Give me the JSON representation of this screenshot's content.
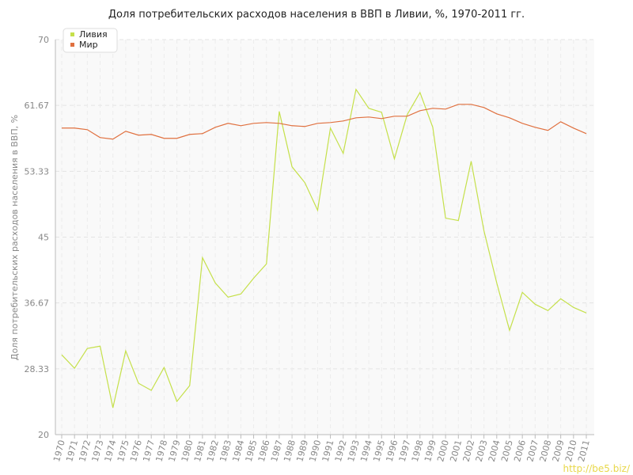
{
  "chart_data": {
    "type": "line",
    "title": "Доля потребительских расходов населения в ВВП в Ливии, %, 1970-2011 гг.",
    "y_label": "Доля потребительских расходов населения в ВВП, %",
    "watermark": "http://be5.biz/",
    "categories": [
      "1970",
      "1971",
      "1972",
      "1973",
      "1974",
      "1975",
      "1976",
      "1977",
      "1978",
      "1979",
      "1980",
      "1981",
      "1982",
      "1983",
      "1984",
      "1985",
      "1986",
      "1987",
      "1988",
      "1989",
      "1990",
      "1991",
      "1992",
      "1993",
      "1994",
      "1995",
      "1996",
      "1997",
      "1998",
      "1999",
      "2000",
      "2001",
      "2002",
      "2003",
      "2004",
      "2005",
      "2006",
      "2007",
      "2008",
      "2009",
      "2010",
      "2011"
    ],
    "series": [
      {
        "name": "Ливия",
        "color": "#c5e04a",
        "values": [
          30.1,
          28.4,
          30.9,
          31.2,
          23.4,
          30.6,
          26.5,
          25.6,
          28.5,
          24.2,
          26.2,
          42.4,
          39.2,
          37.4,
          37.8,
          39.8,
          41.6,
          60.9,
          53.9,
          51.9,
          48.4,
          58.8,
          55.6,
          63.7,
          61.3,
          60.8,
          54.9,
          60.5,
          63.3,
          58.9,
          47.4,
          47.1,
          54.6,
          45.8,
          39.2,
          33.2,
          38.0,
          36.5,
          35.7,
          37.2,
          36.1,
          35.4
        ]
      },
      {
        "name": "Мир",
        "color": "#e0703f",
        "values": [
          58.8,
          58.8,
          58.6,
          57.6,
          57.4,
          58.4,
          57.9,
          58.0,
          57.5,
          57.5,
          58.0,
          58.1,
          58.9,
          59.4,
          59.1,
          59.4,
          59.5,
          59.4,
          59.1,
          59.0,
          59.4,
          59.5,
          59.7,
          60.1,
          60.2,
          60.0,
          60.3,
          60.3,
          61.0,
          61.3,
          61.2,
          61.8,
          61.8,
          61.4,
          60.6,
          60.1,
          59.4,
          58.9,
          58.5,
          59.6,
          58.8,
          58.1
        ]
      }
    ],
    "ylim": [
      20,
      70
    ],
    "yticks": [
      20,
      28.33,
      36.67,
      45,
      53.33,
      61.67,
      70
    ],
    "grid": true
  }
}
